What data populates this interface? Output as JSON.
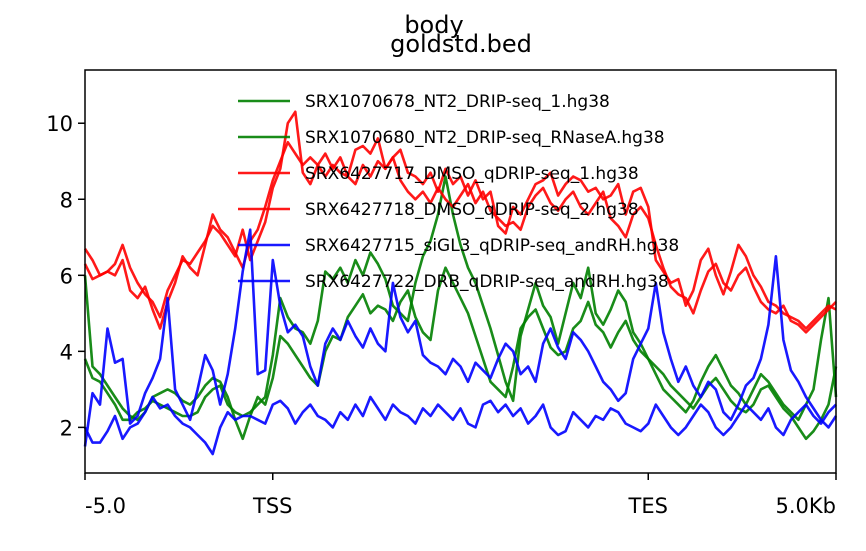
{
  "chart_data": {
    "type": "line",
    "title_lines": [
      "body",
      "goldstd.bed"
    ],
    "xlabel": "",
    "ylabel": "",
    "x_tick_labels": [
      "-5.0",
      "TSS",
      "TES",
      "5.0Kb"
    ],
    "x_tick_bins": [
      0,
      25,
      75,
      100
    ],
    "x_range": [
      0,
      100
    ],
    "y_range": [
      0.8,
      11.4
    ],
    "y_ticks": [
      2,
      4,
      6,
      8,
      10
    ],
    "grid": false,
    "legend_position": "top-right",
    "series": [
      {
        "name": "SRX1070678_NT2_DRIP-seq_1.hg38",
        "color": "#008000",
        "values": [
          3.8,
          3.3,
          3.2,
          2.9,
          2.6,
          2.2,
          2.2,
          2.4,
          2.5,
          2.7,
          2.6,
          2.5,
          2.4,
          2.3,
          2.3,
          2.4,
          2.8,
          3.0,
          3.1,
          2.6,
          2.4,
          2.3,
          2.4,
          2.6,
          2.8,
          3.9,
          5.4,
          4.9,
          4.6,
          4.5,
          4.2,
          4.8,
          6.1,
          5.9,
          6.2,
          5.8,
          6.4,
          6.0,
          6.6,
          6.3,
          5.9,
          5.2,
          5.0,
          4.8,
          5.8,
          6.5,
          6.9,
          7.6,
          8.6,
          7.6,
          6.8,
          6.2,
          5.8,
          5.2,
          4.6,
          3.9,
          3.2,
          2.7,
          4.4,
          5.1,
          5.8,
          5.2,
          4.9,
          4.2,
          5.0,
          5.8,
          5.4,
          6.2,
          5.0,
          4.7,
          5.1,
          5.6,
          5.3,
          4.5,
          4.2,
          3.8,
          3.4,
          3.0,
          2.8,
          2.6,
          2.4,
          2.7,
          3.2,
          3.6,
          3.9,
          3.5,
          3.1,
          2.9,
          2.6,
          3.0,
          3.4,
          3.2,
          2.9,
          2.6,
          2.4,
          2.2,
          2.6,
          3.0,
          4.3,
          5.4,
          2.8
        ]
      },
      {
        "name": "SRX1070680_NT2_DRIP-seq_RNaseA.hg38",
        "color": "#008000",
        "values": [
          6.0,
          3.6,
          3.4,
          3.1,
          2.8,
          2.5,
          2.3,
          2.2,
          2.4,
          2.8,
          2.9,
          3.0,
          2.9,
          2.7,
          2.6,
          2.8,
          3.1,
          3.3,
          3.2,
          2.8,
          2.2,
          1.7,
          2.3,
          2.8,
          2.6,
          3.3,
          4.4,
          4.2,
          3.9,
          3.6,
          3.3,
          3.1,
          4.0,
          4.4,
          4.3,
          4.9,
          5.2,
          5.5,
          5.0,
          5.2,
          5.1,
          4.8,
          5.3,
          5.6,
          4.9,
          4.5,
          4.3,
          5.6,
          6.2,
          5.8,
          5.4,
          5.0,
          4.4,
          3.8,
          3.2,
          3.0,
          2.8,
          3.6,
          4.6,
          4.9,
          5.1,
          4.6,
          4.1,
          3.9,
          4.0,
          4.6,
          4.8,
          5.3,
          4.7,
          4.5,
          4.1,
          4.5,
          4.8,
          4.3,
          4.0,
          3.8,
          3.6,
          3.4,
          3.1,
          2.9,
          2.7,
          2.5,
          2.8,
          3.1,
          3.3,
          3.0,
          2.7,
          2.5,
          2.4,
          2.6,
          3.0,
          3.1,
          2.8,
          2.5,
          2.3,
          2.0,
          1.7,
          1.9,
          2.2,
          2.6,
          3.6
        ]
      },
      {
        "name": "SRX6427717_DMSO_qDRIP-seq_1.hg38",
        "color": "#ff0000",
        "values": [
          6.7,
          6.4,
          6.0,
          6.1,
          6.3,
          6.8,
          6.2,
          5.8,
          5.5,
          5.3,
          4.9,
          5.6,
          6.0,
          6.4,
          6.3,
          6.6,
          6.9,
          7.3,
          7.1,
          6.8,
          6.5,
          7.2,
          6.4,
          6.9,
          7.4,
          8.3,
          8.8,
          10.0,
          10.3,
          8.7,
          8.4,
          8.9,
          9.2,
          8.8,
          9.1,
          8.6,
          9.3,
          9.4,
          9.2,
          9.6,
          8.8,
          9.1,
          9.3,
          8.7,
          8.6,
          8.4,
          8.7,
          8.2,
          8.8,
          8.4,
          8.6,
          8.1,
          8.5,
          8.0,
          8.2,
          7.3,
          7.1,
          7.8,
          7.6,
          8.0,
          8.4,
          8.5,
          8.7,
          8.1,
          8.4,
          8.6,
          8.5,
          8.2,
          8.3,
          8.0,
          8.1,
          8.4,
          7.6,
          8.2,
          8.3,
          7.8,
          6.4,
          6.1,
          5.8,
          5.9,
          5.2,
          5.6,
          6.4,
          6.7,
          6.0,
          5.5,
          6.1,
          6.8,
          6.5,
          6.0,
          5.7,
          5.3,
          5.2,
          5.0,
          4.9,
          4.8,
          4.6,
          4.8,
          5.0,
          5.2,
          5.1
        ]
      },
      {
        "name": "SRX6427718_DMSO_qDRIP-seq_2.hg38",
        "color": "#ff0000",
        "values": [
          6.3,
          5.9,
          6.0,
          6.1,
          6.0,
          6.4,
          5.6,
          5.4,
          5.7,
          5.1,
          4.6,
          5.3,
          5.8,
          6.5,
          6.2,
          6.0,
          6.8,
          7.6,
          7.2,
          7.0,
          6.6,
          6.2,
          6.9,
          7.2,
          7.8,
          8.5,
          9.0,
          9.5,
          9.2,
          8.9,
          9.1,
          8.9,
          8.6,
          8.9,
          8.7,
          8.6,
          8.4,
          8.9,
          8.6,
          9.0,
          8.8,
          9.1,
          8.5,
          8.2,
          8.0,
          8.2,
          7.9,
          8.3,
          8.0,
          7.8,
          8.1,
          8.4,
          7.9,
          8.2,
          7.7,
          7.5,
          7.3,
          7.4,
          7.2,
          7.8,
          8.1,
          8.3,
          7.9,
          7.7,
          8.0,
          8.2,
          7.8,
          7.6,
          7.9,
          8.2,
          7.5,
          7.3,
          7.0,
          7.6,
          7.8,
          7.5,
          6.8,
          6.2,
          5.7,
          5.5,
          5.4,
          5.0,
          5.6,
          6.1,
          6.3,
          5.8,
          5.6,
          6.0,
          6.2,
          5.7,
          5.3,
          5.1,
          5.0,
          5.2,
          4.8,
          4.7,
          4.5,
          4.7,
          4.9,
          5.1,
          5.3
        ]
      },
      {
        "name": "SRX6427715_siGL3_qDRIP-seq_andRH.hg38",
        "color": "#0000ff",
        "values": [
          1.5,
          2.9,
          2.6,
          4.6,
          3.7,
          3.8,
          2.1,
          2.3,
          2.9,
          3.3,
          3.8,
          5.4,
          3.0,
          2.6,
          2.2,
          3.0,
          3.9,
          3.5,
          2.6,
          3.4,
          4.6,
          6.1,
          7.2,
          3.4,
          3.5,
          6.4,
          5.2,
          4.5,
          4.7,
          4.4,
          3.6,
          3.1,
          4.2,
          4.6,
          4.3,
          4.8,
          4.4,
          4.1,
          4.6,
          4.2,
          4.0,
          5.8,
          4.9,
          4.5,
          4.8,
          3.9,
          3.7,
          3.6,
          3.4,
          3.8,
          3.6,
          3.2,
          3.7,
          3.5,
          3.3,
          3.8,
          4.2,
          4.0,
          3.4,
          3.6,
          3.2,
          4.2,
          4.6,
          4.1,
          3.8,
          4.5,
          4.3,
          4.0,
          3.6,
          3.2,
          3.0,
          2.7,
          2.9,
          3.8,
          4.2,
          4.6,
          5.8,
          4.5,
          3.8,
          3.2,
          3.6,
          3.1,
          2.8,
          3.2,
          3.0,
          2.4,
          2.2,
          2.6,
          3.1,
          3.3,
          3.8,
          4.7,
          6.5,
          4.3,
          3.5,
          3.2,
          2.8,
          2.5,
          2.2,
          2.0,
          2.3
        ]
      },
      {
        "name": "SRX6427722_DRB_qDRIP-seq_andRH.hg38",
        "color": "#0000ff",
        "values": [
          2.0,
          1.6,
          1.6,
          1.9,
          2.3,
          1.7,
          2.0,
          2.1,
          2.4,
          2.8,
          2.5,
          2.6,
          2.3,
          2.1,
          2.0,
          1.8,
          1.6,
          1.3,
          2.0,
          2.4,
          2.2,
          2.3,
          2.3,
          2.2,
          2.1,
          2.6,
          2.7,
          2.5,
          2.1,
          2.4,
          2.6,
          2.3,
          2.2,
          2.0,
          2.4,
          2.2,
          2.6,
          2.3,
          2.8,
          2.5,
          2.2,
          2.6,
          2.4,
          2.3,
          2.1,
          2.5,
          2.3,
          2.6,
          2.4,
          2.2,
          2.5,
          2.1,
          2.0,
          2.6,
          2.7,
          2.4,
          2.6,
          2.3,
          2.5,
          2.1,
          2.3,
          2.6,
          2.0,
          1.8,
          1.9,
          2.4,
          2.2,
          2.0,
          2.3,
          2.2,
          2.5,
          2.4,
          2.1,
          2.0,
          1.9,
          2.1,
          2.6,
          2.3,
          2.0,
          1.8,
          2.0,
          2.3,
          2.6,
          2.4,
          2.0,
          1.8,
          2.0,
          2.3,
          2.6,
          2.4,
          2.2,
          2.5,
          2.0,
          1.8,
          2.2,
          2.4,
          2.6,
          2.3,
          2.1,
          2.4,
          2.6
        ]
      }
    ]
  }
}
